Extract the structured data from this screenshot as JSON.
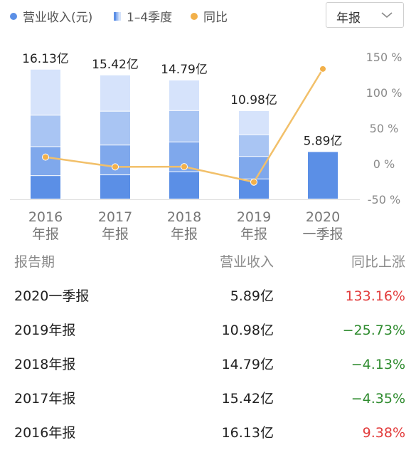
{
  "legend": {
    "revenue_label": "营业收入(元)",
    "quarter_label": "1–4季度",
    "yoy_label": "同比",
    "revenue_color": "#5b8fe6",
    "yoy_color": "#f2b04a"
  },
  "period_select": {
    "value": "年报",
    "icon": "chevron-down-icon"
  },
  "chart_data": {
    "type": "bar",
    "categories": [
      [
        "2016",
        "年报"
      ],
      [
        "2017",
        "年报"
      ],
      [
        "2018",
        "年报"
      ],
      [
        "2019",
        "年报"
      ],
      [
        "2020",
        "一季报"
      ]
    ],
    "bar_labels": [
      "16.13亿",
      "15.42亿",
      "14.79亿",
      "10.98亿",
      "5.89亿"
    ],
    "revenue": [
      16.13,
      15.42,
      14.79,
      10.98,
      5.89
    ],
    "quarter_stack": [
      [
        2.9,
        3.6,
        3.9,
        5.7
      ],
      [
        3.0,
        3.7,
        4.2,
        4.5
      ],
      [
        3.4,
        3.7,
        3.9,
        3.8
      ],
      [
        2.5,
        2.8,
        2.7,
        3.0
      ],
      [
        5.89
      ]
    ],
    "quarter_colors": [
      "#5b8fe6",
      "#7fa8ec",
      "#a9c5f3",
      "#d6e3fb"
    ],
    "yoy": [
      9.38,
      -4.35,
      -4.13,
      -25.73,
      133.16
    ],
    "yoy_axis_ticks": [
      "150 %",
      "100 %",
      "50 %",
      "0 %",
      "-50 %"
    ],
    "yoy_axis_values": [
      150,
      100,
      50,
      0,
      -50
    ],
    "revenue_ylim": [
      0,
      18.5
    ],
    "yoy_ylim": [
      -50,
      150
    ]
  },
  "table": {
    "headers": [
      "报告期",
      "营业收入",
      "同比上涨"
    ],
    "rows": [
      {
        "period": "2020一季报",
        "revenue": "5.89亿",
        "yoy": "133.16%",
        "sign": "pos"
      },
      {
        "period": "2019年报",
        "revenue": "10.98亿",
        "yoy": "−25.73%",
        "sign": "neg"
      },
      {
        "period": "2018年报",
        "revenue": "14.79亿",
        "yoy": "−4.13%",
        "sign": "neg"
      },
      {
        "period": "2017年报",
        "revenue": "15.42亿",
        "yoy": "−4.35%",
        "sign": "neg"
      },
      {
        "period": "2016年报",
        "revenue": "16.13亿",
        "yoy": "9.38%",
        "sign": "pos"
      }
    ]
  }
}
